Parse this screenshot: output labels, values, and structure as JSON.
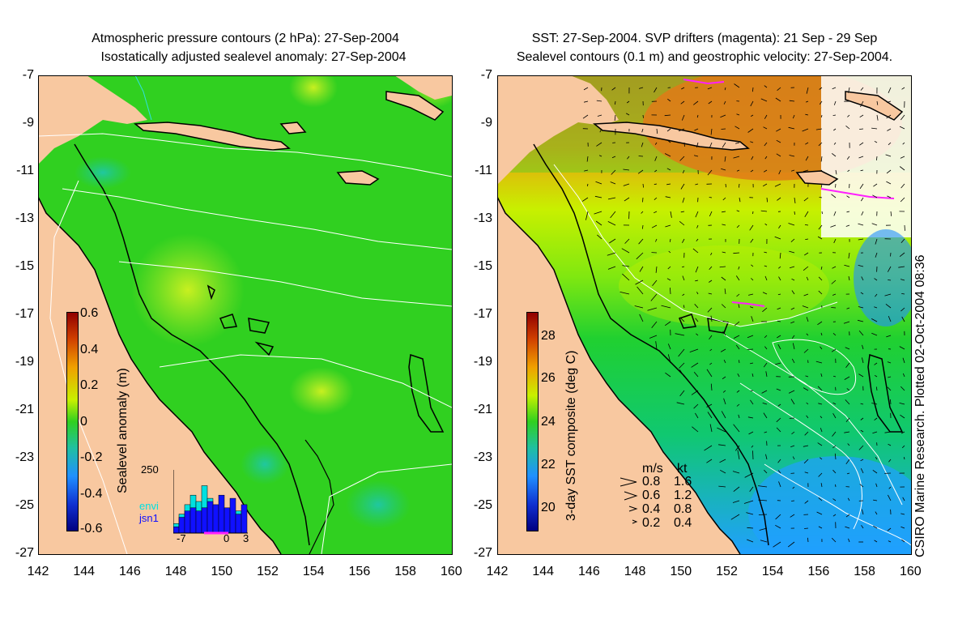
{
  "left_panel": {
    "title_line1": "Atmospheric pressure contours (2 hPa): 27-Sep-2004",
    "title_line2": "Isostatically adjusted sealevel anomaly: 27-Sep-2004",
    "colorbar_label": "Sealevel anomaly (m)",
    "colorbar_ticks": [
      "0.6",
      "0.4",
      "0.2",
      "0",
      "-0.2",
      "-0.4",
      "-0.6"
    ],
    "histogram": {
      "ymax_label": "250",
      "x_ticks": [
        "-7",
        "0",
        "3"
      ],
      "legend": [
        "envi",
        "jsn1"
      ],
      "legend_colors": [
        "#00e0e0",
        "#1010ff"
      ],
      "envi_values": [
        0.15,
        0.3,
        0.45,
        0.6,
        0.5,
        0.75,
        0.55,
        0.3,
        0.25,
        0.0,
        0.2,
        0.35,
        0.0
      ],
      "jsn1_values": [
        0.1,
        0.25,
        0.35,
        0.4,
        0.35,
        0.4,
        0.5,
        0.45,
        0.6,
        0.4,
        0.55,
        0.3,
        0.45
      ]
    }
  },
  "right_panel": {
    "title_line1": "SST: 27-Sep-2004. SVP drifters (magenta): 21 Sep - 29 Sep",
    "title_line2": "Sealevel contours (0.1 m) and geostrophic velocity: 27-Sep-2004.",
    "colorbar_label": "3-day SST composite (deg C)",
    "colorbar_ticks": [
      "28",
      "26",
      "24",
      "22",
      "20"
    ],
    "velocity_legend": {
      "header_ms": "m/s",
      "header_kt": "kt",
      "rows": [
        {
          "ms": "0.8",
          "kt": "1.6"
        },
        {
          "ms": "0.6",
          "kt": "1.2"
        },
        {
          "ms": "0.4",
          "kt": "0.8"
        },
        {
          "ms": "0.2",
          "kt": "0.4"
        }
      ]
    }
  },
  "axes": {
    "lat_ticks": [
      "-7",
      "-9",
      "-11",
      "-13",
      "-15",
      "-17",
      "-19",
      "-21",
      "-23",
      "-25",
      "-27"
    ],
    "lon_ticks": [
      "142",
      "144",
      "146",
      "148",
      "150",
      "152",
      "154",
      "156",
      "158",
      "160"
    ]
  },
  "credit": "CSIRO Marine Research. Plotted 02-Oct-2004 08:36",
  "colors": {
    "land": "#f8c8a0",
    "sea_left": "#30d020",
    "sea_right": "#10d030",
    "warm": "#e07818",
    "yellow": "#c8f000",
    "blue": "#20a0ff",
    "contour": "#ffffff",
    "coast": "#000000",
    "drifter": "#ff20ff"
  }
}
